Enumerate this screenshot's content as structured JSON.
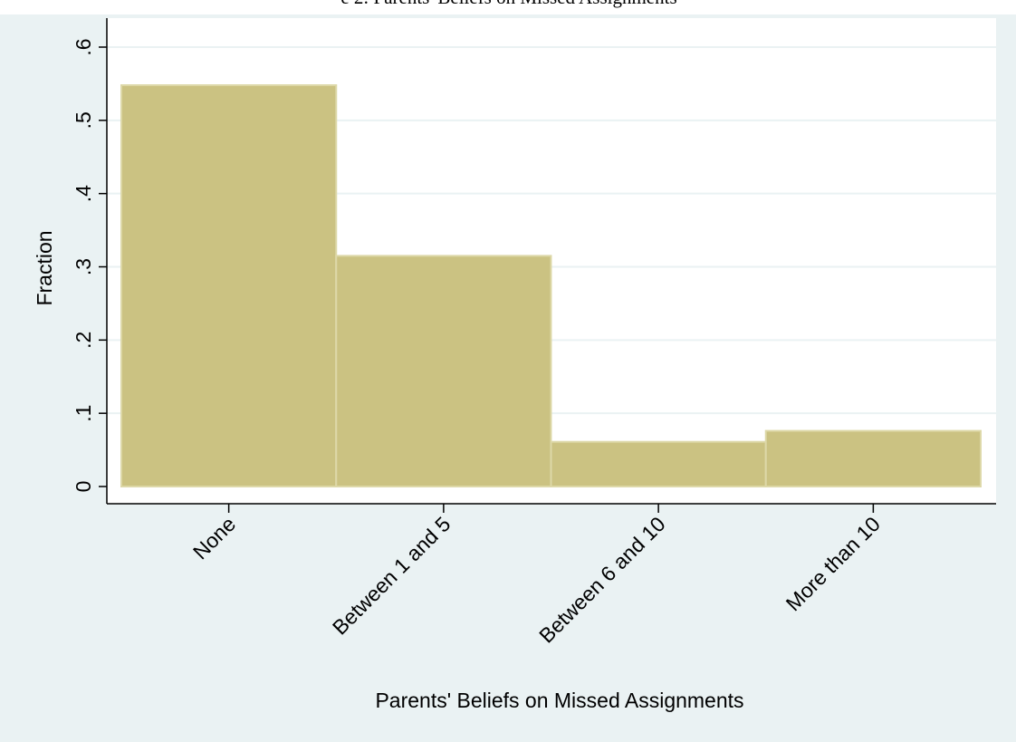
{
  "header": {
    "caption_fragment": "e 2: Parents' Beliefs on Missed Assignments"
  },
  "colors": {
    "page_background": "#ffffff",
    "plot_region": "#eaf2f3",
    "plot_background": "#ffffff",
    "bar_fill": "#cbc282",
    "bar_outline": "#ddd8a8",
    "gridline": "#eaf2f3",
    "axis": "#000000"
  },
  "chart_data": {
    "type": "bar",
    "categories": [
      "None",
      "Between 1 and 5",
      "Between 6 and 10",
      "More than 10"
    ],
    "values": [
      0.548,
      0.315,
      0.061,
      0.076
    ],
    "xlabel": "Parents' Beliefs on Missed Assignments",
    "ylabel": "Fraction",
    "ylim": [
      0,
      0.6
    ],
    "yticks": [
      0,
      0.1,
      0.2,
      0.3,
      0.4,
      0.5,
      0.6
    ],
    "ytick_labels": [
      "0",
      ".1",
      ".2",
      ".3",
      ".4",
      ".5",
      ".6"
    ],
    "grid": true,
    "legend": "none"
  }
}
